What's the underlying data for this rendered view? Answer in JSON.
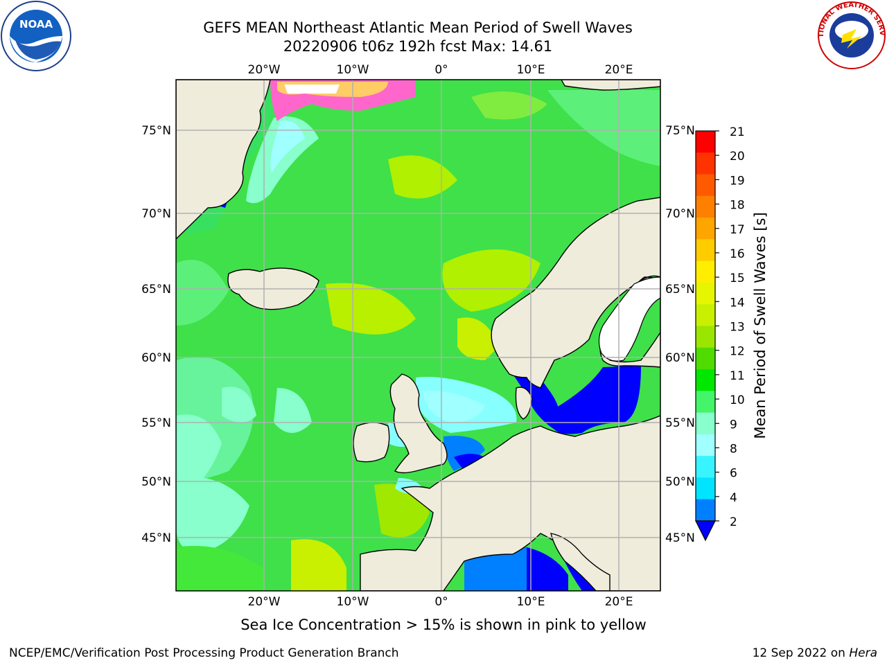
{
  "title": {
    "line1": "GEFS MEAN Northeast Atlantic Mean Period of Swell Waves",
    "line2": "20220906 t06z 192h fcst   Max: 14.61"
  },
  "logos": {
    "left": {
      "icon": "noaa-logo-icon",
      "text": "NOAA"
    },
    "right": {
      "icon": "nws-logo-icon",
      "text": "NATIONAL WEATHER SERVICE"
    }
  },
  "map": {
    "lon_ticks": [
      "20°W",
      "10°W",
      "0°",
      "10°E",
      "20°E"
    ],
    "lat_ticks": [
      "75°N",
      "70°N",
      "65°N",
      "60°N",
      "55°N",
      "50°N",
      "45°N"
    ],
    "land_color": "#efecdc",
    "sea_ice_note": "Sea Ice Concentration > 15% is shown in pink to yellow"
  },
  "colorbar": {
    "label": "Mean Period of Swell Waves [s]",
    "ticks": [
      "21",
      "20",
      "19",
      "18",
      "17",
      "16",
      "15",
      "14",
      "13",
      "12",
      "11",
      "10",
      "9",
      "8",
      "6",
      "4",
      "2"
    ],
    "colors": [
      "#ff0000",
      "#ff3300",
      "#ff5a00",
      "#ff8000",
      "#ffa500",
      "#ffcc00",
      "#ffee00",
      "#e6f500",
      "#c8f000",
      "#9be600",
      "#50dc00",
      "#00e800",
      "#44f56a",
      "#88ffcc",
      "#a0ffff",
      "#38f4ff",
      "#00e4ff",
      "#0080ff",
      "#0000ff"
    ]
  },
  "footer": {
    "left": "NCEP/EMC/Verification Post Processing Product Generation Branch",
    "right_date": "12 Sep 2022 on ",
    "right_host": "Hera"
  }
}
